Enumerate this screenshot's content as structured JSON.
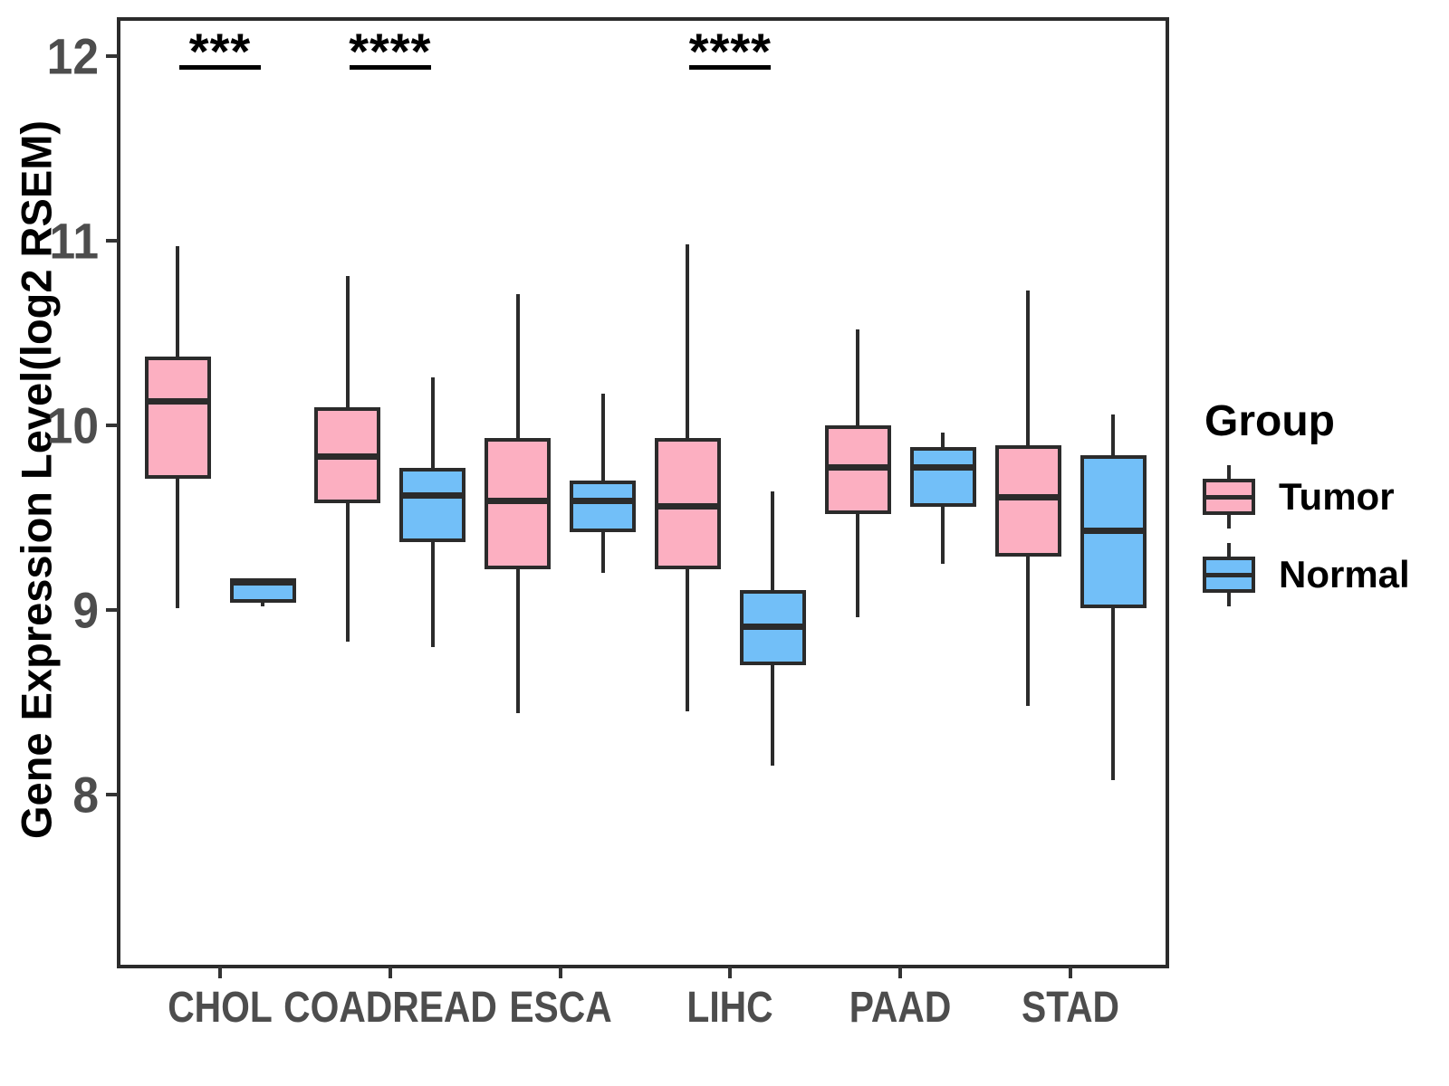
{
  "y_axis": {
    "title": "Gene Expression Level(log2 RSEM)",
    "tick_labels": [
      "12",
      "11",
      "10",
      "9",
      "8"
    ]
  },
  "legend": {
    "title": "Group",
    "entries": [
      {
        "label": "Tumor",
        "color": "#FCAFC1"
      },
      {
        "label": "Normal",
        "color": "#72BFF8"
      }
    ]
  },
  "colors": {
    "tumor_fill": "#FCAFC1",
    "normal_fill": "#72BFF8",
    "line": "#2B2B2B",
    "tick_text": "#4D4D4D",
    "annotation": "#000000",
    "background": "#FFFFFF"
  },
  "chart_data": {
    "type": "boxplot",
    "title": "",
    "xlabel": "",
    "ylabel": "Gene Expression Level(log2 RSEM)",
    "categories": [
      "CHOL",
      "COADREAD",
      "ESCA",
      "LIHC",
      "PAAD",
      "STAD"
    ],
    "yticks": [
      8,
      9,
      10,
      11,
      12
    ],
    "ylim": [
      7.07,
      12.2
    ],
    "grid": false,
    "legend_position": "right-center",
    "legend_title": "Group",
    "series": [
      {
        "name": "Tumor",
        "color": "#FCAFC1",
        "boxes": [
          {
            "category": "CHOL",
            "min": 9.01,
            "q1": 9.71,
            "median": 10.13,
            "q3": 10.37,
            "max": 10.97
          },
          {
            "category": "COADREAD",
            "min": 8.83,
            "q1": 9.58,
            "median": 9.83,
            "q3": 10.1,
            "max": 10.81
          },
          {
            "category": "ESCA",
            "min": 8.44,
            "q1": 9.22,
            "median": 9.59,
            "q3": 9.93,
            "max": 10.71
          },
          {
            "category": "LIHC",
            "min": 8.45,
            "q1": 9.22,
            "median": 9.56,
            "q3": 9.93,
            "max": 10.98
          },
          {
            "category": "PAAD",
            "min": 8.96,
            "q1": 9.52,
            "median": 9.77,
            "q3": 10.0,
            "max": 10.52
          },
          {
            "category": "STAD",
            "min": 8.48,
            "q1": 9.29,
            "median": 9.61,
            "q3": 9.89,
            "max": 10.73
          }
        ]
      },
      {
        "name": "Normal",
        "color": "#72BFF8",
        "boxes": [
          {
            "category": "CHOL",
            "min": 9.02,
            "q1": 9.04,
            "median": 9.15,
            "q3": 9.17,
            "max": 9.17
          },
          {
            "category": "COADREAD",
            "min": 8.8,
            "q1": 9.37,
            "median": 9.62,
            "q3": 9.77,
            "max": 10.26
          },
          {
            "category": "ESCA",
            "min": 9.2,
            "q1": 9.42,
            "median": 9.59,
            "q3": 9.7,
            "max": 10.17
          },
          {
            "category": "LIHC",
            "min": 8.16,
            "q1": 8.7,
            "median": 8.91,
            "q3": 9.11,
            "max": 9.64
          },
          {
            "category": "PAAD",
            "min": 9.25,
            "q1": 9.56,
            "median": 9.77,
            "q3": 9.88,
            "max": 9.96
          },
          {
            "category": "STAD",
            "min": 8.08,
            "q1": 9.01,
            "median": 9.43,
            "q3": 9.84,
            "max": 10.06
          }
        ]
      }
    ],
    "annotations": [
      {
        "category": "CHOL",
        "label": "***"
      },
      {
        "category": "COADREAD",
        "label": "****"
      },
      {
        "category": "LIHC",
        "label": "****"
      }
    ]
  }
}
